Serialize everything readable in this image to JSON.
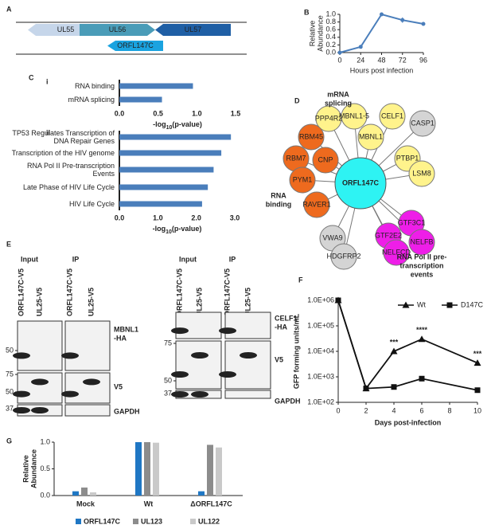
{
  "chart_data": [
    {
      "type": "line",
      "panel_label": "B",
      "x": [
        0,
        24,
        48,
        72,
        96
      ],
      "values": [
        0.0,
        0.15,
        1.0,
        0.85,
        0.75
      ],
      "errors": [
        0.01,
        0.02,
        0.02,
        0.07,
        0.05
      ],
      "color": "#4a7ebb",
      "xlim": [
        0,
        96
      ],
      "xticks": [
        0,
        24,
        48,
        72,
        96
      ],
      "ylim": [
        0,
        1.0
      ],
      "yticks": [
        {
          "value": 0,
          "label": "0.0"
        },
        0.2,
        0.4,
        0.6,
        0.8,
        {
          "value": 1,
          "label": "1.0"
        }
      ],
      "xlabel": "Hours post infection",
      "ylabel": [
        "Relative",
        "Abundance"
      ],
      "grid": false
    },
    {
      "type": "hbar",
      "panel_label": "C",
      "sub_label": "i",
      "categories": [
        "RNA binding",
        "mRNA splicing"
      ],
      "values": [
        0.95,
        0.55
      ],
      "color": "#4a7ebb",
      "xlim": [
        0,
        1.5
      ],
      "xticks": [
        {
          "value": 0,
          "label": "0.0"
        },
        0.5,
        {
          "value": 1,
          "label": "1.0"
        },
        1.5
      ],
      "xlabel": [
        "-log",
        "10",
        "(p-value)"
      ]
    },
    {
      "type": "hbar",
      "sub_label": "ii",
      "categories": [
        "TP53 Regulates Transcription of DNA Repair Genes",
        "Transcription of the HIV genome",
        "RNA Pol II Pre-transcription Events",
        "Late Phase of HIV Life Cycle",
        "HIV Life Cycle"
      ],
      "values": [
        2.9,
        2.65,
        2.45,
        2.3,
        2.15
      ],
      "color": "#4a7ebb",
      "xlim": [
        0,
        3
      ],
      "xticks": [
        {
          "value": 0,
          "label": "0.0"
        },
        {
          "value": 1,
          "label": "1.0"
        },
        {
          "value": 2,
          "label": "2.0"
        },
        {
          "value": 3,
          "label": "3.0"
        }
      ],
      "xlabel": [
        "-log",
        "10",
        "(p-value)"
      ]
    },
    {
      "type": "line",
      "panel_label": "F",
      "log_scale": true,
      "x": [
        0,
        2,
        4,
        6,
        10
      ],
      "series": [
        {
          "name": "Wt",
          "marker": "triangle",
          "color": "#111111",
          "values": [
            1000000,
            350,
            10000,
            30000,
            3500
          ]
        },
        {
          "name": "D147C",
          "marker": "square",
          "color": "#111111",
          "values": [
            1000000,
            350,
            400,
            850,
            300
          ]
        }
      ],
      "xlim": [
        0,
        10
      ],
      "xticks": [
        0,
        2,
        4,
        6,
        8,
        10
      ],
      "ylim": [
        100,
        1000000
      ],
      "yticks": [
        {
          "value": 100,
          "label": "1.0E+02"
        },
        {
          "value": 1000,
          "label": "1.0E+03"
        },
        {
          "value": 10000,
          "label": "1.0E+04"
        },
        {
          "value": 100000,
          "label": "1.0E+05"
        },
        {
          "value": 1000000,
          "label": "1.0E+06"
        }
      ],
      "xlabel": "Days post-infection",
      "ylabel": "GFP forming units/mL",
      "legend": "top-right",
      "annotations": [
        {
          "text": "***",
          "x": 4
        },
        {
          "text": "****",
          "x": 6
        },
        {
          "text": "***",
          "x": 10
        }
      ]
    },
    {
      "type": "groupedbar",
      "panel_label": "G",
      "categories": [
        "Mock",
        "Wt",
        "ΔORFL147C"
      ],
      "series": [
        {
          "name": "ORFL147C",
          "color": "#1f77c4",
          "values": [
            0.08,
            1.0,
            0.08
          ]
        },
        {
          "name": "UL123",
          "color": "#8c8c8c",
          "values": [
            0.15,
            1.0,
            0.95
          ]
        },
        {
          "name": "UL122",
          "color": "#c9c9c9",
          "values": [
            0.06,
            0.99,
            0.9
          ]
        }
      ],
      "ylim": [
        0,
        1.0
      ],
      "yticks": [
        {
          "value": 0,
          "label": "0.0"
        },
        0.5,
        {
          "value": 1,
          "label": "1.0"
        }
      ],
      "ylabel": [
        "Relative",
        "Abundance"
      ],
      "legend": "bottom"
    }
  ],
  "panel_a": {
    "label": "A",
    "genes": [
      "UL55",
      "UL56",
      "ORFL147C",
      "UL57"
    ]
  },
  "panel_d": {
    "label": "D",
    "center": "ORFL147C",
    "groups": [
      {
        "label": [
          "mRNA",
          "splicing"
        ],
        "color": "#fff38c",
        "nodes": [
          "PPP4R2",
          "MBNL1-5",
          "CELF1",
          "MBNL1",
          "PTBP1",
          "LSM8"
        ]
      },
      {
        "label": [
          "RNA",
          "binding"
        ],
        "color": "#ee6a1e",
        "nodes": [
          "RBM45",
          "RBM7",
          "CNP",
          "PYM1",
          "RAVER1"
        ]
      },
      {
        "label": [
          "RNA Pol II pre-",
          "transcription",
          "events"
        ],
        "color": "#ee1ee8",
        "nodes": [
          "GTF3C1",
          "GTF2E2",
          "NELFB",
          "NELFCD"
        ]
      },
      {
        "color": "#d4d4d4",
        "nodes": [
          "CASP1",
          "VWA9",
          "HDGFRP2"
        ]
      }
    ]
  },
  "panel_e": {
    "label": "E",
    "blots": [
      {
        "headers": [
          "Input",
          "IP"
        ],
        "lanes": [
          "ORFL147C-V5",
          "UL25-V5",
          "ORFL147C-V5",
          "UL25-V5"
        ],
        "rows": [
          {
            "label": [
              "MBNL1",
              "-HA"
            ],
            "markers": [
              "50"
            ]
          },
          {
            "label": [
              "V5"
            ],
            "markers": [
              "75",
              "50"
            ]
          },
          {
            "label": [
              "GAPDH"
            ],
            "markers": [
              "37"
            ]
          }
        ]
      },
      {
        "headers": [
          "Input",
          "IP"
        ],
        "lanes": [
          "ORFL147C-V5",
          "UL25-V5",
          "ORFL147C-V5",
          "UL25-V5"
        ],
        "rows": [
          {
            "label": [
              "CELF1",
              "-HA"
            ],
            "markers": []
          },
          {
            "label": [
              "V5"
            ],
            "markers": [
              "75",
              "50"
            ]
          },
          {
            "label": [
              "GAPDH"
            ],
            "markers": [
              "37"
            ]
          }
        ]
      }
    ]
  }
}
